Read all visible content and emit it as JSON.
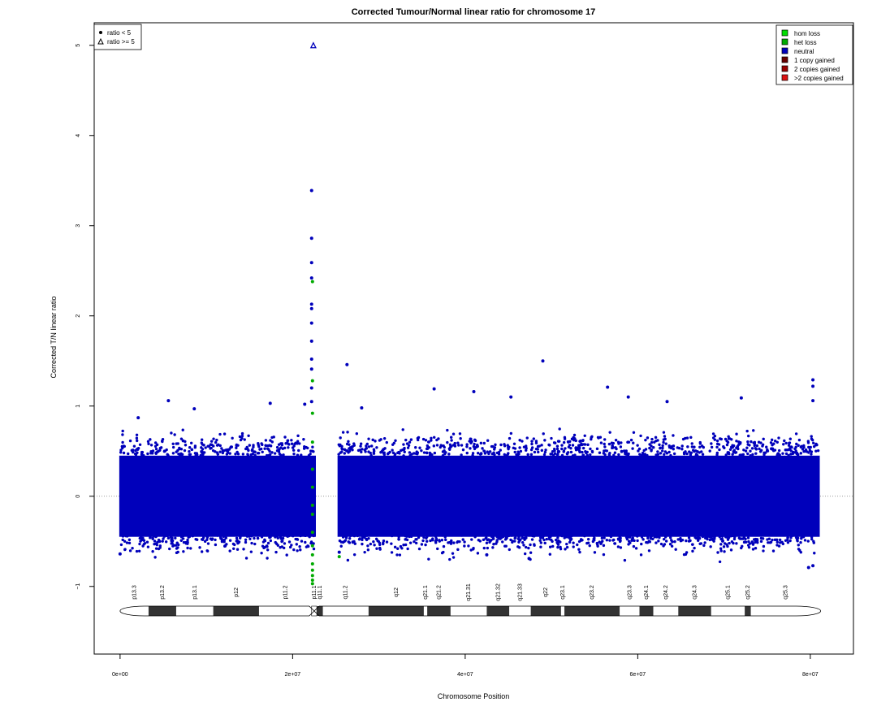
{
  "chart_data": {
    "type": "scatter",
    "title": "Corrected Tumour/Normal linear ratio for chromosome  17",
    "xlabel": "Chromosome Position",
    "ylabel": "Corrected T/N linear ratio",
    "xlim": [
      -3000000,
      85000000
    ],
    "ylim": [
      -1.75,
      5.25
    ],
    "x_ticks": [
      0,
      20000000,
      40000000,
      60000000,
      80000000
    ],
    "x_tick_labels": [
      "0e+00",
      "2e+07",
      "4e+07",
      "6e+07",
      "8e+07"
    ],
    "y_ticks": [
      -1,
      0,
      1,
      2,
      3,
      4,
      5
    ],
    "y_tick_labels": [
      "−1",
      "0",
      "1",
      "2",
      "3",
      "4",
      "5"
    ],
    "reference_line": 0,
    "shape_legend": {
      "position": "top-left",
      "entries": [
        {
          "symbol": "filled-circle",
          "label": "ratio < 5"
        },
        {
          "symbol": "open-triangle",
          "label": "ratio >= 5"
        }
      ]
    },
    "color_legend": {
      "position": "top-right",
      "entries": [
        {
          "label": "hom loss",
          "color": "#00dd00"
        },
        {
          "label": "het loss",
          "color": "#00aa00"
        },
        {
          "label": "neutral",
          "color": "#0000bb"
        },
        {
          "label": "1 copy gained",
          "color": "#660000"
        },
        {
          "label": "2 copies gained",
          "color": "#990000"
        },
        {
          "label": ">2 copies gained",
          "color": "#dd1111"
        }
      ]
    },
    "series": [
      {
        "name": "neutral",
        "color": "#0000bb",
        "bulk_segments": [
          {
            "x_start": 0,
            "x_end": 11300000,
            "y_low": -0.45,
            "y_high": 0.45
          },
          {
            "x_start": 11300000,
            "x_end": 22600000,
            "y_low": -0.45,
            "y_high": 0.45
          },
          {
            "x_start": 25300000,
            "x_end": 81000000,
            "y_low": -0.45,
            "y_high": 0.45
          }
        ],
        "points": [
          {
            "x": 22200000,
            "y": 3.39
          },
          {
            "x": 22200000,
            "y": 2.86
          },
          {
            "x": 22200000,
            "y": 2.59
          },
          {
            "x": 22200000,
            "y": 2.42
          },
          {
            "x": 22200000,
            "y": 2.13
          },
          {
            "x": 22200000,
            "y": 2.08
          },
          {
            "x": 22200000,
            "y": 1.92
          },
          {
            "x": 22200000,
            "y": 1.72
          },
          {
            "x": 22200000,
            "y": 1.52
          },
          {
            "x": 22200000,
            "y": 1.41
          },
          {
            "x": 22200000,
            "y": 1.2
          },
          {
            "x": 22200000,
            "y": 1.05
          },
          {
            "x": 26300000,
            "y": 1.46
          },
          {
            "x": 49000000,
            "y": 1.5
          },
          {
            "x": 56500000,
            "y": 1.21
          },
          {
            "x": 36400000,
            "y": 1.19
          },
          {
            "x": 41000000,
            "y": 1.16
          },
          {
            "x": 45300000,
            "y": 1.1
          },
          {
            "x": 58900000,
            "y": 1.1
          },
          {
            "x": 80300000,
            "y": 1.29
          },
          {
            "x": 80300000,
            "y": 1.22
          },
          {
            "x": 80300000,
            "y": 1.06
          },
          {
            "x": 5600000,
            "y": 1.06
          },
          {
            "x": 17400000,
            "y": 1.03
          },
          {
            "x": 21400000,
            "y": 1.02
          },
          {
            "x": 72000000,
            "y": 1.09
          },
          {
            "x": 63400000,
            "y": 1.05
          },
          {
            "x": 28000000,
            "y": 0.98
          },
          {
            "x": 8600000,
            "y": 0.97
          },
          {
            "x": 2100000,
            "y": 0.87
          },
          {
            "x": 47400000,
            "y": -0.69
          },
          {
            "x": 79800000,
            "y": -0.79
          },
          {
            "x": 80300000,
            "y": -0.77
          },
          {
            "x": 0,
            "y": -0.64
          },
          {
            "x": 25400000,
            "y": -0.62
          },
          {
            "x": 42500000,
            "y": -0.65
          }
        ]
      },
      {
        "name": "neutral",
        "color": "#0000bb",
        "marker": "open-triangle",
        "points": [
          {
            "x": 22400000,
            "y": 5.0
          }
        ]
      },
      {
        "name": "het loss",
        "color": "#00aa00",
        "points": [
          {
            "x": 22300000,
            "y": 2.38
          },
          {
            "x": 22300000,
            "y": 1.28
          },
          {
            "x": 22300000,
            "y": 0.92
          },
          {
            "x": 22300000,
            "y": 0.6
          },
          {
            "x": 22300000,
            "y": 0.3
          },
          {
            "x": 22300000,
            "y": 0.1
          },
          {
            "x": 22300000,
            "y": -0.1
          },
          {
            "x": 22300000,
            "y": -0.2
          },
          {
            "x": 22300000,
            "y": -0.4
          },
          {
            "x": 22300000,
            "y": -0.55
          },
          {
            "x": 22300000,
            "y": -0.65
          },
          {
            "x": 22300000,
            "y": -0.75
          },
          {
            "x": 22300000,
            "y": -0.82
          },
          {
            "x": 22300000,
            "y": -0.88
          },
          {
            "x": 22300000,
            "y": -0.93
          },
          {
            "x": 22300000,
            "y": -0.97
          },
          {
            "x": 25400000,
            "y": -0.67
          }
        ]
      }
    ],
    "ideogram": {
      "bands": [
        {
          "name": "p13.3",
          "start": 0,
          "end": 3300000,
          "stain": "white"
        },
        {
          "name": "p13.2",
          "start": 3300000,
          "end": 6500000,
          "stain": "dark"
        },
        {
          "name": "p13.1",
          "start": 6500000,
          "end": 10800000,
          "stain": "white"
        },
        {
          "name": "p12",
          "start": 10800000,
          "end": 16100000,
          "stain": "dark"
        },
        {
          "name": "p11.2",
          "start": 16100000,
          "end": 22200000,
          "stain": "white"
        },
        {
          "name": "p11.1",
          "start": 22200000,
          "end": 22800000,
          "stain": "centromere"
        },
        {
          "name": "q11.1",
          "start": 22800000,
          "end": 23500000,
          "stain": "dark"
        },
        {
          "name": "q11.2",
          "start": 23500000,
          "end": 28800000,
          "stain": "white"
        },
        {
          "name": "q12",
          "start": 28800000,
          "end": 35200000,
          "stain": "dark"
        },
        {
          "name": "q21.1",
          "start": 35200000,
          "end": 35600000,
          "stain": "white"
        },
        {
          "name": "q21.2",
          "start": 35600000,
          "end": 38300000,
          "stain": "dark"
        },
        {
          "name": "q21.31",
          "start": 38300000,
          "end": 42500000,
          "stain": "white"
        },
        {
          "name": "q21.32",
          "start": 42500000,
          "end": 45100000,
          "stain": "dark"
        },
        {
          "name": "q21.33",
          "start": 45100000,
          "end": 47600000,
          "stain": "white"
        },
        {
          "name": "q22",
          "start": 47600000,
          "end": 51100000,
          "stain": "dark"
        },
        {
          "name": "q23.1",
          "start": 51100000,
          "end": 51500000,
          "stain": "white"
        },
        {
          "name": "q23.2",
          "start": 51500000,
          "end": 57900000,
          "stain": "dark"
        },
        {
          "name": "q23.3",
          "start": 57900000,
          "end": 60200000,
          "stain": "white"
        },
        {
          "name": "q24.1",
          "start": 60200000,
          "end": 61800000,
          "stain": "dark"
        },
        {
          "name": "q24.2",
          "start": 61800000,
          "end": 64700000,
          "stain": "white"
        },
        {
          "name": "q24.3",
          "start": 64700000,
          "end": 68500000,
          "stain": "dark"
        },
        {
          "name": "q25.1",
          "start": 68500000,
          "end": 72400000,
          "stain": "white"
        },
        {
          "name": "q25.2",
          "start": 72400000,
          "end": 73100000,
          "stain": "dark"
        },
        {
          "name": "q25.3",
          "start": 73100000,
          "end": 81200000,
          "stain": "white"
        }
      ]
    }
  }
}
